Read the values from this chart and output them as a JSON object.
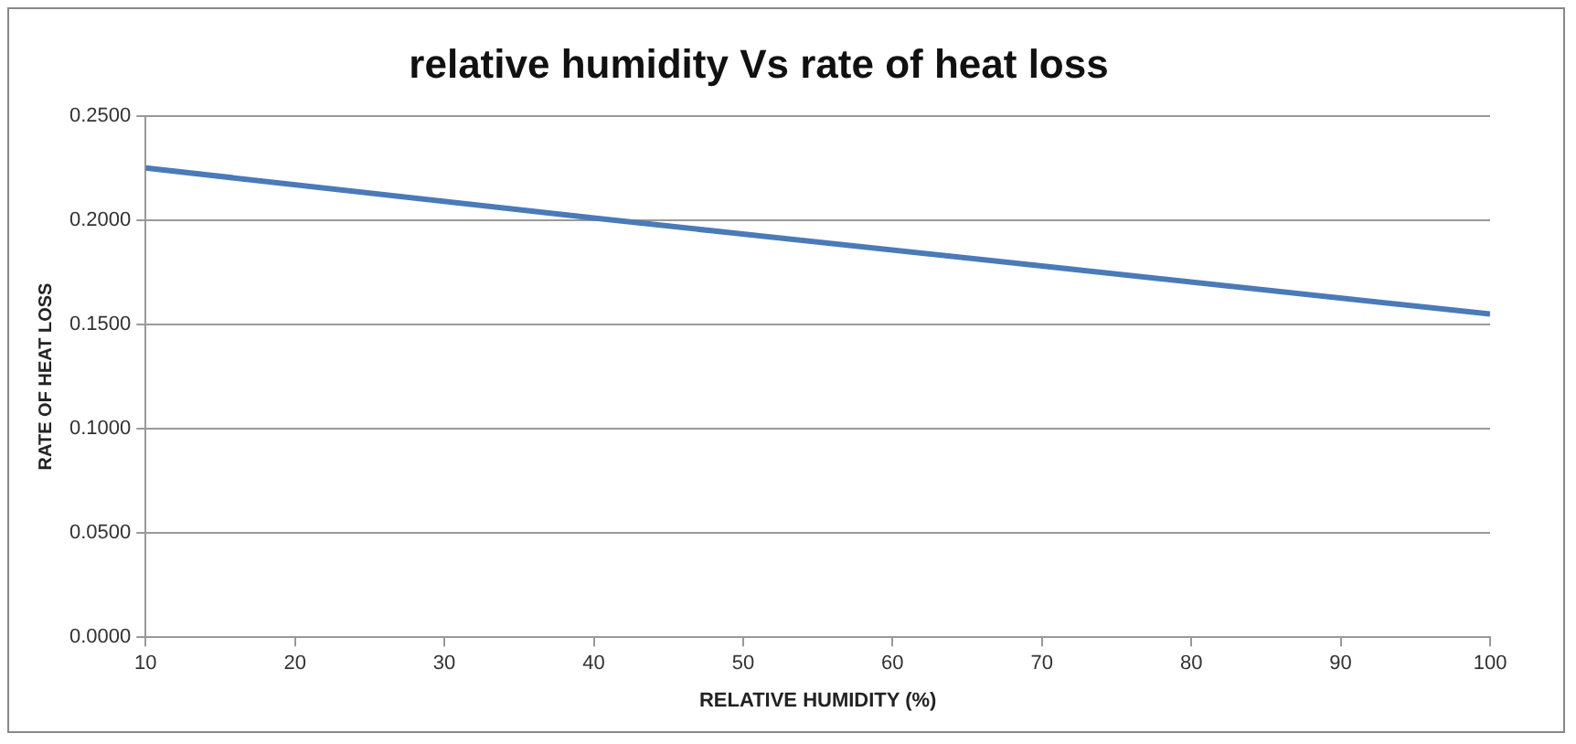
{
  "chart_data": {
    "type": "line",
    "title": "relative humidity Vs rate of heat loss",
    "xlabel": "RELATIVE HUMIDITY (%)",
    "ylabel": "RATE OF HEAT LOSS",
    "x": [
      10,
      40,
      70,
      100
    ],
    "series": [
      {
        "color": "#4a7ab8",
        "values": [
          0.225,
          0.201,
          0.178,
          0.155
        ]
      }
    ],
    "xlim": [
      10,
      100
    ],
    "xticks": [
      10,
      20,
      30,
      40,
      50,
      60,
      70,
      80,
      90,
      100
    ],
    "ylim": [
      0,
      0.25
    ],
    "yticks": [
      {
        "value": 0,
        "label": "0.0000"
      },
      {
        "value": 0.05,
        "label": "0.0500"
      },
      {
        "value": 0.1,
        "label": "0.1000"
      },
      {
        "value": 0.15,
        "label": "0.1500"
      },
      {
        "value": 0.2,
        "label": "0.2000"
      },
      {
        "value": 0.25,
        "label": "0.2500"
      }
    ],
    "grid": "y",
    "legend": false,
    "marker": "none",
    "line_style": "solid"
  }
}
